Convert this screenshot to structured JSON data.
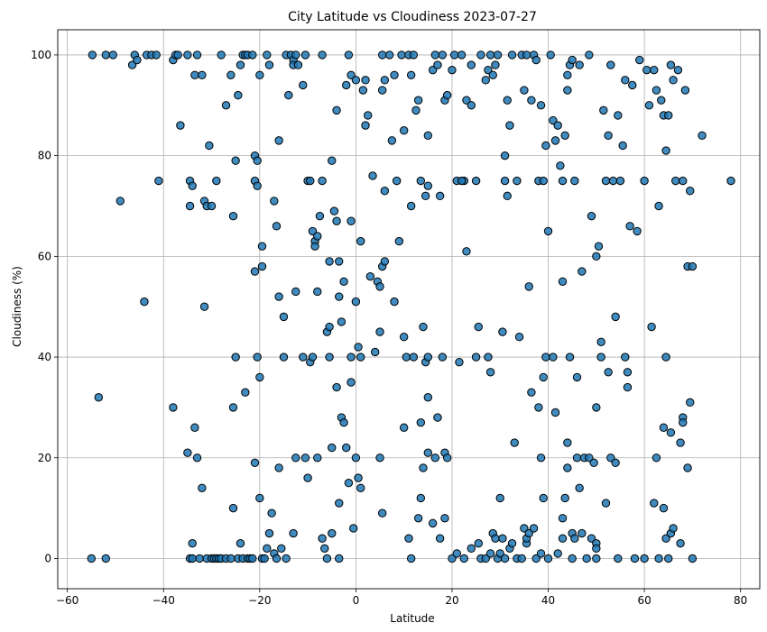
{
  "chart_data": {
    "type": "scatter",
    "title": "City Latitude vs Cloudiness 2023-07-27",
    "xlabel": "Latitude",
    "ylabel": "Cloudiness (%)",
    "xlim": [
      -62,
      84
    ],
    "ylim": [
      -6,
      105
    ],
    "xticks": [
      -60,
      -40,
      -20,
      0,
      20,
      40,
      60,
      80
    ],
    "yticks": [
      0,
      20,
      40,
      60,
      80,
      100
    ],
    "grid": true,
    "point_color": "#1f77b4",
    "edge_color": "#000000",
    "points": [
      [
        -54.8,
        100
      ],
      [
        -52,
        100
      ],
      [
        -50.5,
        100
      ],
      [
        -49,
        71
      ],
      [
        -46.5,
        98
      ],
      [
        -46,
        100
      ],
      [
        -45.5,
        99
      ],
      [
        -44,
        51
      ],
      [
        -43.5,
        100
      ],
      [
        -42.5,
        100
      ],
      [
        -41.5,
        100
      ],
      [
        -41,
        75
      ],
      [
        -38,
        99
      ],
      [
        -37.5,
        100
      ],
      [
        -37,
        100
      ],
      [
        -36.5,
        86
      ],
      [
        -35,
        100
      ],
      [
        -34.5,
        75
      ],
      [
        -34.5,
        70
      ],
      [
        -34,
        74
      ],
      [
        -33.5,
        96
      ],
      [
        -33,
        100
      ],
      [
        -32,
        96
      ],
      [
        -31.5,
        71
      ],
      [
        -31,
        70
      ],
      [
        -30.5,
        82
      ],
      [
        -30,
        70
      ],
      [
        -29,
        75
      ],
      [
        -28,
        100
      ],
      [
        -27,
        90
      ],
      [
        -26,
        96
      ],
      [
        -25.5,
        68
      ],
      [
        -25,
        79
      ],
      [
        -24.5,
        92
      ],
      [
        -24,
        98
      ],
      [
        -23.5,
        100
      ],
      [
        -23,
        100
      ],
      [
        -22.5,
        100
      ],
      [
        -21.5,
        100
      ],
      [
        -21,
        80
      ],
      [
        -21,
        75
      ],
      [
        -21,
        57
      ],
      [
        -20.5,
        79
      ],
      [
        -20.5,
        74
      ],
      [
        -20,
        96
      ],
      [
        -19.5,
        62
      ],
      [
        -19.5,
        58
      ],
      [
        -18.5,
        100
      ],
      [
        -18,
        98
      ],
      [
        -17,
        71
      ],
      [
        -16.5,
        66
      ],
      [
        -16,
        83
      ],
      [
        -16,
        52
      ],
      [
        -15,
        48
      ],
      [
        -14.5,
        100
      ],
      [
        -14,
        92
      ],
      [
        -13.5,
        100
      ],
      [
        -13,
        99
      ],
      [
        -13,
        98
      ],
      [
        -12.5,
        100
      ],
      [
        -12.5,
        53
      ],
      [
        -12,
        98
      ],
      [
        -11,
        94
      ],
      [
        -10.5,
        100
      ],
      [
        -10,
        75
      ],
      [
        -9.5,
        75
      ],
      [
        -9,
        65
      ],
      [
        -8.5,
        63
      ],
      [
        -8.5,
        62
      ],
      [
        -8,
        64
      ],
      [
        -8,
        53
      ],
      [
        -7.5,
        68
      ],
      [
        -7,
        100
      ],
      [
        -7,
        75
      ],
      [
        -6,
        45
      ],
      [
        -5.5,
        59
      ],
      [
        -5,
        79
      ],
      [
        -4.5,
        69
      ],
      [
        -4,
        89
      ],
      [
        -4,
        67
      ],
      [
        -3.5,
        59
      ],
      [
        -3.5,
        52
      ],
      [
        -3,
        47
      ],
      [
        -2.5,
        55
      ],
      [
        -2,
        94
      ],
      [
        -1.5,
        100
      ],
      [
        -1,
        96
      ],
      [
        -1,
        67
      ],
      [
        0,
        95
      ],
      [
        0,
        51
      ],
      [
        1,
        63
      ],
      [
        1.5,
        93
      ],
      [
        2,
        86
      ],
      [
        2,
        95
      ],
      [
        2.5,
        88
      ],
      [
        3,
        56
      ],
      [
        3.5,
        76
      ],
      [
        4,
        41
      ],
      [
        4.5,
        55
      ],
      [
        5,
        54
      ],
      [
        5,
        45
      ],
      [
        5.5,
        100
      ],
      [
        5.5,
        58
      ],
      [
        5.5,
        93
      ],
      [
        6,
        95
      ],
      [
        6,
        73
      ],
      [
        6,
        59
      ],
      [
        7,
        100
      ],
      [
        7.5,
        83
      ],
      [
        8,
        96
      ],
      [
        8,
        51
      ],
      [
        8.5,
        75
      ],
      [
        9,
        63
      ],
      [
        9.5,
        100
      ],
      [
        10,
        85
      ],
      [
        10,
        44
      ],
      [
        11,
        100
      ],
      [
        11.5,
        96
      ],
      [
        11.5,
        70
      ],
      [
        12,
        100
      ],
      [
        12.5,
        89
      ],
      [
        13,
        91
      ],
      [
        13.5,
        75
      ],
      [
        14,
        46
      ],
      [
        14.5,
        72
      ],
      [
        15,
        84
      ],
      [
        15,
        74
      ],
      [
        16,
        97
      ],
      [
        16.5,
        100
      ],
      [
        17,
        98
      ],
      [
        17.5,
        72
      ],
      [
        18,
        100
      ],
      [
        18.5,
        91
      ],
      [
        19,
        92
      ],
      [
        20,
        97
      ],
      [
        20.5,
        100
      ],
      [
        21,
        75
      ],
      [
        22,
        100
      ],
      [
        22.5,
        75
      ],
      [
        23,
        61
      ],
      [
        23,
        91
      ],
      [
        24,
        98
      ],
      [
        24,
        90
      ],
      [
        25,
        75
      ],
      [
        25.5,
        46
      ],
      [
        26,
        100
      ],
      [
        27,
        95
      ],
      [
        27.5,
        97
      ],
      [
        28,
        100
      ],
      [
        28.5,
        96
      ],
      [
        29,
        98
      ],
      [
        29.5,
        100
      ],
      [
        30.5,
        45
      ],
      [
        31,
        80
      ],
      [
        31,
        75
      ],
      [
        31.5,
        91
      ],
      [
        31.5,
        72
      ],
      [
        32,
        86
      ],
      [
        32.5,
        100
      ],
      [
        33.5,
        75
      ],
      [
        34.5,
        100
      ],
      [
        35,
        93
      ],
      [
        35.5,
        100
      ],
      [
        36,
        54
      ],
      [
        36.5,
        91
      ],
      [
        37,
        100
      ],
      [
        37.5,
        99
      ],
      [
        38,
        75
      ],
      [
        38.5,
        90
      ],
      [
        39,
        75
      ],
      [
        39.5,
        82
      ],
      [
        40,
        65
      ],
      [
        40.5,
        100
      ],
      [
        41,
        87
      ],
      [
        41.5,
        83
      ],
      [
        42,
        86
      ],
      [
        42.5,
        78
      ],
      [
        43,
        75
      ],
      [
        43,
        55
      ],
      [
        43.5,
        84
      ],
      [
        44,
        96
      ],
      [
        44,
        93
      ],
      [
        44.5,
        98
      ],
      [
        45,
        99
      ],
      [
        45.5,
        75
      ],
      [
        46.5,
        98
      ],
      [
        47,
        57
      ],
      [
        48.5,
        100
      ],
      [
        49,
        68
      ],
      [
        50,
        60
      ],
      [
        50.5,
        62
      ],
      [
        51,
        43
      ],
      [
        51.5,
        89
      ],
      [
        52,
        75
      ],
      [
        52.5,
        84
      ],
      [
        53,
        98
      ],
      [
        53.5,
        75
      ],
      [
        54,
        48
      ],
      [
        54.5,
        88
      ],
      [
        55,
        75
      ],
      [
        55.5,
        82
      ],
      [
        56,
        95
      ],
      [
        57,
        66
      ],
      [
        57.5,
        94
      ],
      [
        58.5,
        65
      ],
      [
        59,
        99
      ],
      [
        60,
        75
      ],
      [
        60.5,
        97
      ],
      [
        61,
        90
      ],
      [
        62,
        97
      ],
      [
        62.5,
        93
      ],
      [
        63,
        70
      ],
      [
        63.5,
        91
      ],
      [
        64,
        88
      ],
      [
        64.5,
        81
      ],
      [
        65,
        88
      ],
      [
        65.5,
        98
      ],
      [
        66,
        95
      ],
      [
        66.5,
        75
      ],
      [
        67,
        97
      ],
      [
        68,
        75
      ],
      [
        68.5,
        93
      ],
      [
        69,
        58
      ],
      [
        69.5,
        73
      ],
      [
        70,
        58
      ],
      [
        72,
        84
      ],
      [
        78,
        75
      ],
      [
        -55,
        0
      ],
      [
        -53.5,
        32
      ],
      [
        -52,
        0
      ],
      [
        -38,
        30
      ],
      [
        -35,
        21
      ],
      [
        -34.5,
        0
      ],
      [
        -34,
        3
      ],
      [
        -34,
        0
      ],
      [
        -33.5,
        26
      ],
      [
        -33,
        20
      ],
      [
        -32.5,
        0
      ],
      [
        -32,
        14
      ],
      [
        -31.5,
        50
      ],
      [
        -31,
        0
      ],
      [
        -30,
        0
      ],
      [
        -29.5,
        0
      ],
      [
        -29,
        0
      ],
      [
        -28.5,
        0
      ],
      [
        -28,
        0
      ],
      [
        -27,
        0
      ],
      [
        -26,
        0
      ],
      [
        -25.5,
        30
      ],
      [
        -25.5,
        10
      ],
      [
        -25,
        40
      ],
      [
        -24.5,
        0
      ],
      [
        -24,
        3
      ],
      [
        -23.5,
        0
      ],
      [
        -23,
        33
      ],
      [
        -22.5,
        0
      ],
      [
        -22,
        0
      ],
      [
        -21.5,
        0
      ],
      [
        -21,
        19
      ],
      [
        -20.5,
        40
      ],
      [
        -20,
        12
      ],
      [
        -20,
        36
      ],
      [
        -19.5,
        0
      ],
      [
        -19,
        0
      ],
      [
        -18.5,
        2
      ],
      [
        -18,
        5
      ],
      [
        -17.5,
        9
      ],
      [
        -17,
        1
      ],
      [
        -16.5,
        0
      ],
      [
        -16,
        18
      ],
      [
        -15.5,
        2
      ],
      [
        -15,
        40
      ],
      [
        -14.5,
        0
      ],
      [
        -13,
        5
      ],
      [
        -12.5,
        20
      ],
      [
        -11,
        40
      ],
      [
        -10.5,
        20
      ],
      [
        -10,
        16
      ],
      [
        -9.5,
        39
      ],
      [
        -9,
        40
      ],
      [
        -8,
        20
      ],
      [
        -7,
        4
      ],
      [
        -6.5,
        2
      ],
      [
        -6,
        0
      ],
      [
        -5.5,
        40
      ],
      [
        -5.5,
        46
      ],
      [
        -5,
        5
      ],
      [
        -5,
        22
      ],
      [
        -4,
        34
      ],
      [
        -3.5,
        11
      ],
      [
        -3.5,
        0
      ],
      [
        -3,
        28
      ],
      [
        -2.5,
        27
      ],
      [
        -2,
        22
      ],
      [
        -1.5,
        15
      ],
      [
        -1,
        35
      ],
      [
        -1,
        40
      ],
      [
        -0.5,
        6
      ],
      [
        0,
        20
      ],
      [
        0.5,
        16
      ],
      [
        0.5,
        42
      ],
      [
        1,
        14
      ],
      [
        1,
        40
      ],
      [
        5,
        20
      ],
      [
        5.5,
        9
      ],
      [
        10,
        26
      ],
      [
        10.5,
        40
      ],
      [
        11,
        4
      ],
      [
        11.5,
        0
      ],
      [
        12,
        40
      ],
      [
        13,
        8
      ],
      [
        13.5,
        12
      ],
      [
        13.5,
        27
      ],
      [
        14,
        18
      ],
      [
        14.5,
        39
      ],
      [
        15,
        32
      ],
      [
        15,
        40
      ],
      [
        15,
        21
      ],
      [
        16,
        7
      ],
      [
        16.5,
        20
      ],
      [
        17,
        28
      ],
      [
        17.5,
        4
      ],
      [
        18,
        40
      ],
      [
        18.5,
        21
      ],
      [
        18.5,
        8
      ],
      [
        19,
        20
      ],
      [
        20,
        0
      ],
      [
        21,
        1
      ],
      [
        21.5,
        39
      ],
      [
        22,
        75
      ],
      [
        22.5,
        0
      ],
      [
        24,
        2
      ],
      [
        25,
        40
      ],
      [
        25.5,
        3
      ],
      [
        26,
        0
      ],
      [
        27,
        0
      ],
      [
        27.5,
        40
      ],
      [
        28,
        1
      ],
      [
        28,
        37
      ],
      [
        28.5,
        5
      ],
      [
        29,
        4
      ],
      [
        29.5,
        0
      ],
      [
        30,
        12
      ],
      [
        30,
        1
      ],
      [
        30.5,
        4
      ],
      [
        31,
        0
      ],
      [
        32,
        2
      ],
      [
        32.5,
        3
      ],
      [
        33,
        23
      ],
      [
        33.5,
        0
      ],
      [
        34,
        44
      ],
      [
        34.5,
        0
      ],
      [
        35,
        6
      ],
      [
        35.5,
        3
      ],
      [
        35.5,
        4
      ],
      [
        36,
        5
      ],
      [
        36.5,
        33
      ],
      [
        37,
        6
      ],
      [
        37.5,
        0
      ],
      [
        38,
        30
      ],
      [
        38.5,
        1
      ],
      [
        38.5,
        20
      ],
      [
        39,
        12
      ],
      [
        39,
        36
      ],
      [
        39.5,
        40
      ],
      [
        40,
        0
      ],
      [
        41,
        40
      ],
      [
        41.5,
        29
      ],
      [
        42,
        1
      ],
      [
        43,
        4
      ],
      [
        43,
        8
      ],
      [
        43.5,
        12
      ],
      [
        44,
        18
      ],
      [
        44,
        23
      ],
      [
        44.5,
        40
      ],
      [
        45,
        0
      ],
      [
        45,
        5
      ],
      [
        45.5,
        4
      ],
      [
        46,
        36
      ],
      [
        46,
        20
      ],
      [
        46.5,
        14
      ],
      [
        47,
        5
      ],
      [
        47.5,
        20
      ],
      [
        48,
        0
      ],
      [
        48.5,
        20
      ],
      [
        49,
        4
      ],
      [
        49.5,
        19
      ],
      [
        50,
        0
      ],
      [
        50,
        3
      ],
      [
        50,
        2
      ],
      [
        50,
        30
      ],
      [
        51,
        40
      ],
      [
        52,
        11
      ],
      [
        52.5,
        37
      ],
      [
        53,
        20
      ],
      [
        54,
        19
      ],
      [
        54.5,
        0
      ],
      [
        56,
        40
      ],
      [
        56.5,
        37
      ],
      [
        56.5,
        34
      ],
      [
        58,
        0
      ],
      [
        60,
        0
      ],
      [
        61.5,
        46
      ],
      [
        62,
        11
      ],
      [
        62.5,
        20
      ],
      [
        63,
        0
      ],
      [
        64,
        26
      ],
      [
        64,
        10
      ],
      [
        64.5,
        40
      ],
      [
        64.5,
        4
      ],
      [
        65,
        0
      ],
      [
        65.5,
        5
      ],
      [
        65.5,
        25
      ],
      [
        66,
        6
      ],
      [
        67.5,
        3
      ],
      [
        67.5,
        23
      ],
      [
        68,
        28
      ],
      [
        68,
        27
      ],
      [
        69,
        18
      ],
      [
        69.5,
        31
      ],
      [
        70,
        0
      ]
    ]
  }
}
